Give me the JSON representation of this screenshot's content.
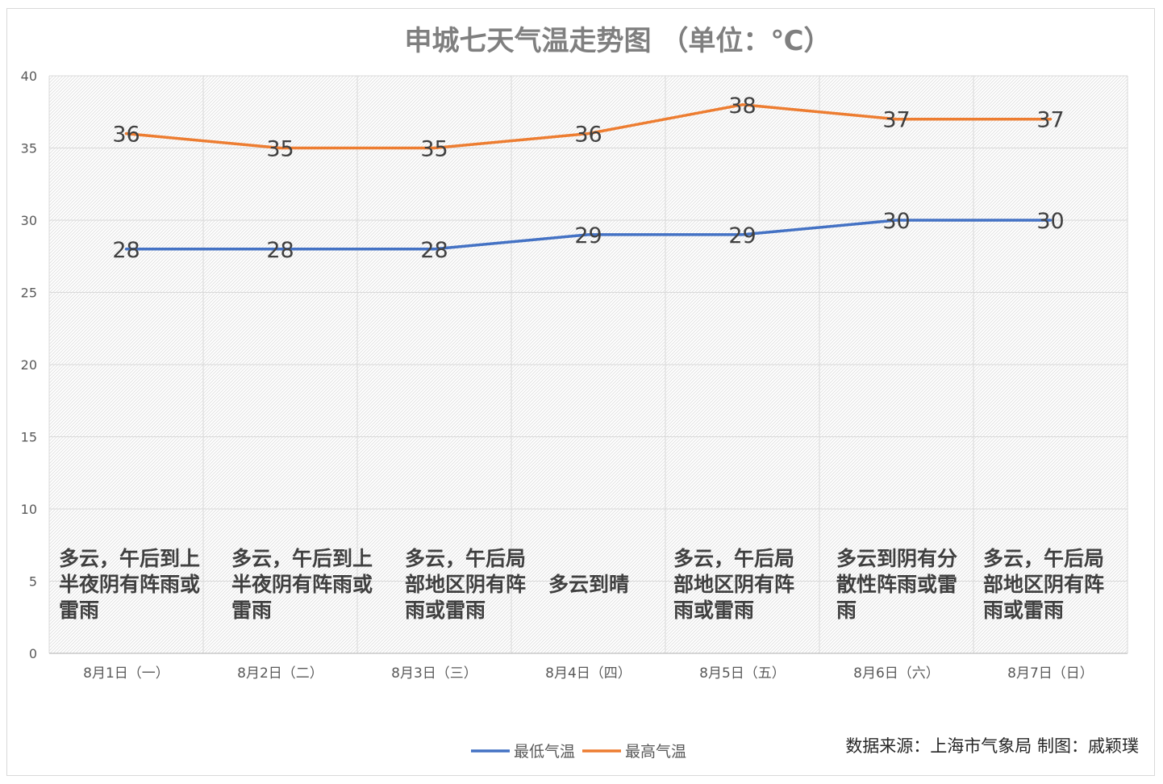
{
  "chart_data": {
    "type": "line",
    "title": "申城七天气温走势图  （单位：℃）",
    "categories": [
      "8月1日（一）",
      "8月2日（二）",
      "8月3日（三）",
      "8月4日（四）",
      "8月5日（五）",
      "8月6日（六）",
      "8月7日（日）"
    ],
    "series": [
      {
        "name": "最低气温",
        "values": [
          28,
          28,
          28,
          29,
          29,
          30,
          30
        ],
        "color": "#4472c4"
      },
      {
        "name": "最高气温",
        "values": [
          36,
          35,
          35,
          36,
          38,
          37,
          37
        ],
        "color": "#ed7d31"
      }
    ],
    "ylim": [
      0,
      40
    ],
    "yticks": [
      0,
      5,
      10,
      15,
      20,
      25,
      30,
      35,
      40
    ],
    "grid": true,
    "legend_position": "bottom",
    "annotations": [
      [
        "多云，午后到上",
        "半夜阴有阵雨或",
        "雷雨"
      ],
      [
        "多云，午后到上",
        "半夜阴有阵雨或",
        "雷雨"
      ],
      [
        "多云，午后局",
        "部地区阴有阵",
        "雨或雷雨"
      ],
      [
        "多云到晴"
      ],
      [
        "多云，午后局",
        "部地区阴有阵",
        "雨或雷雨"
      ],
      [
        "多云到阴有分",
        "散性阵雨或雷",
        "雨"
      ],
      [
        "多云，午后局",
        "部地区阴有阵",
        "雨或雷雨"
      ]
    ],
    "source_note": "数据来源：上海市气象局   制图：戚颖璞"
  }
}
